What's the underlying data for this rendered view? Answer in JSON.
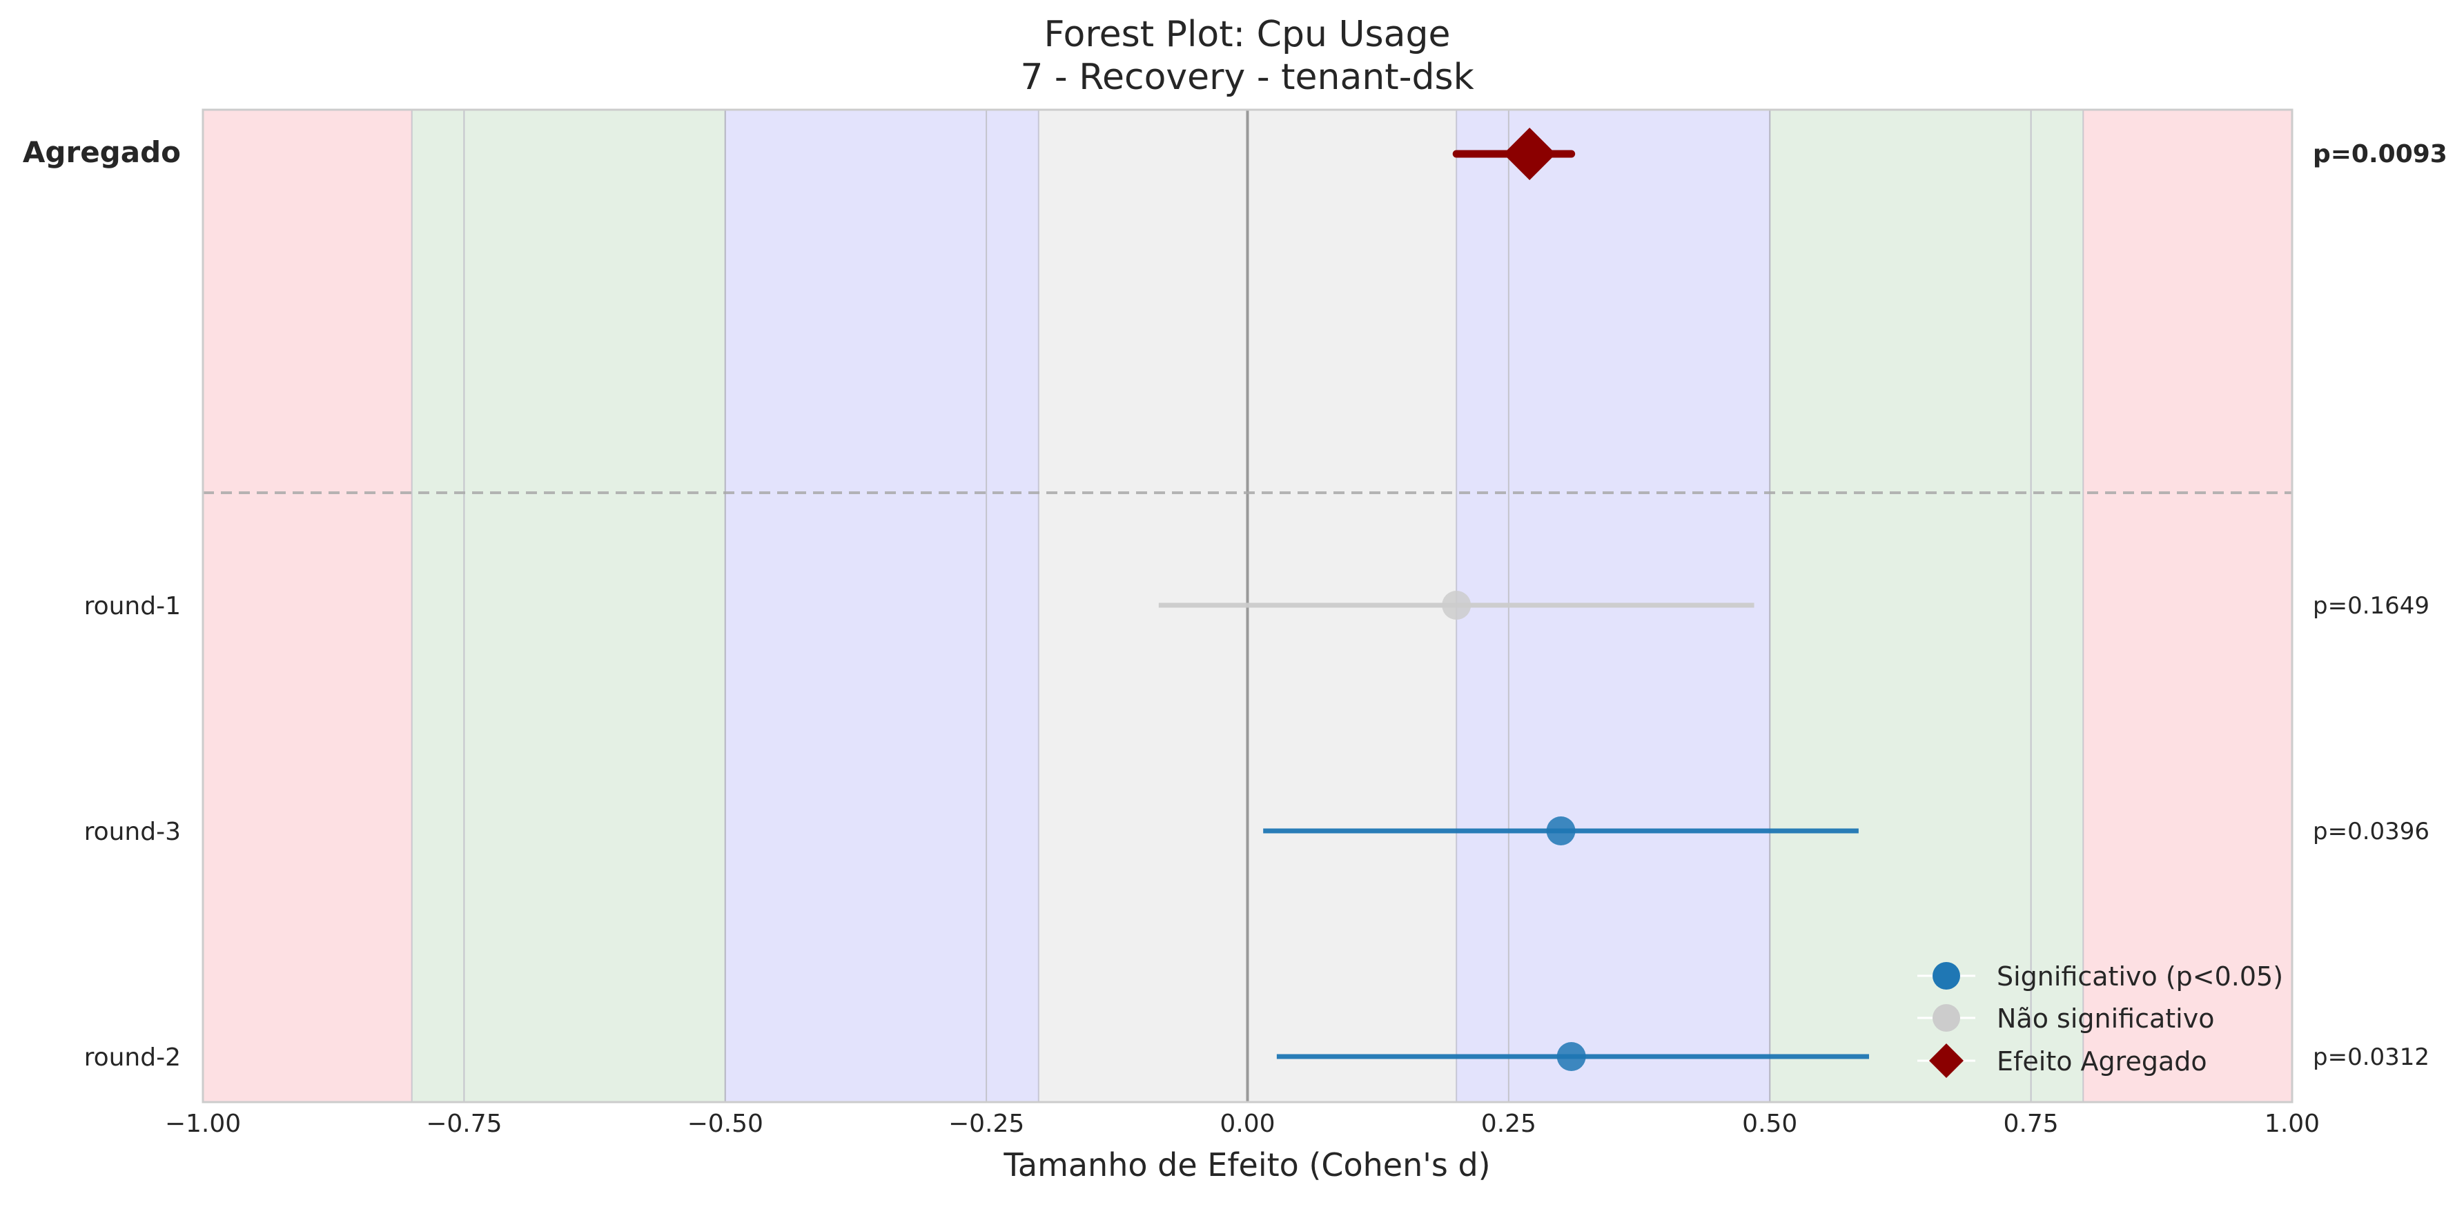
{
  "chart_data": {
    "type": "forest",
    "title": "Forest Plot: Cpu Usage",
    "subtitle": "7 - Recovery - tenant-dsk",
    "xlabel": "Tamanho de Efeito (Cohen's d)",
    "xlim": [
      -1.0,
      1.0
    ],
    "xticks": [
      "−1.00",
      "−0.75",
      "−0.50",
      "−0.25",
      "0.00",
      "0.25",
      "0.50",
      "0.75",
      "1.00"
    ],
    "xtick_values": [
      -1.0,
      -0.75,
      -0.5,
      -0.25,
      0.0,
      0.25,
      0.5,
      0.75,
      1.0
    ],
    "bands": [
      {
        "from": -1.0,
        "to": -0.8,
        "color": "#fde0e3"
      },
      {
        "from": -0.8,
        "to": -0.5,
        "color": "#e4f0e4"
      },
      {
        "from": -0.5,
        "to": -0.2,
        "color": "#e3e3fc"
      },
      {
        "from": -0.2,
        "to": 0.2,
        "color": "#f0f0f0"
      },
      {
        "from": 0.2,
        "to": 0.5,
        "color": "#e3e3fc"
      },
      {
        "from": 0.5,
        "to": 0.8,
        "color": "#e4f0e4"
      },
      {
        "from": 0.8,
        "to": 1.0,
        "color": "#fde0e3"
      }
    ],
    "aggregate": {
      "label": "Agregado",
      "estimate": 0.27,
      "ci": [
        0.2,
        0.31
      ],
      "p_text": "p=0.0093",
      "color": "#8b0000"
    },
    "rows": [
      {
        "label": "round-1",
        "estimate": 0.2,
        "ci": [
          -0.085,
          0.485
        ],
        "p_text": "p=0.1649",
        "significant": false
      },
      {
        "label": "round-3",
        "estimate": 0.3,
        "ci": [
          0.015,
          0.585
        ],
        "p_text": "p=0.0396",
        "significant": true
      },
      {
        "label": "round-2",
        "estimate": 0.31,
        "ci": [
          0.028,
          0.595
        ],
        "p_text": "p=0.0312",
        "significant": true
      }
    ],
    "colors": {
      "significant": "#1f77b4",
      "not_significant": "#cccccc",
      "aggregate": "#8b0000"
    },
    "legend": {
      "position": "lower-right",
      "items": [
        {
          "label": "Significativo (p<0.05)",
          "marker": "circle",
          "color": "#1f77b4"
        },
        {
          "label": "Não significativo",
          "marker": "circle",
          "color": "#cccccc"
        },
        {
          "label": "Efeito Agregado",
          "marker": "diamond",
          "color": "#8b0000"
        }
      ]
    },
    "grid": true
  }
}
